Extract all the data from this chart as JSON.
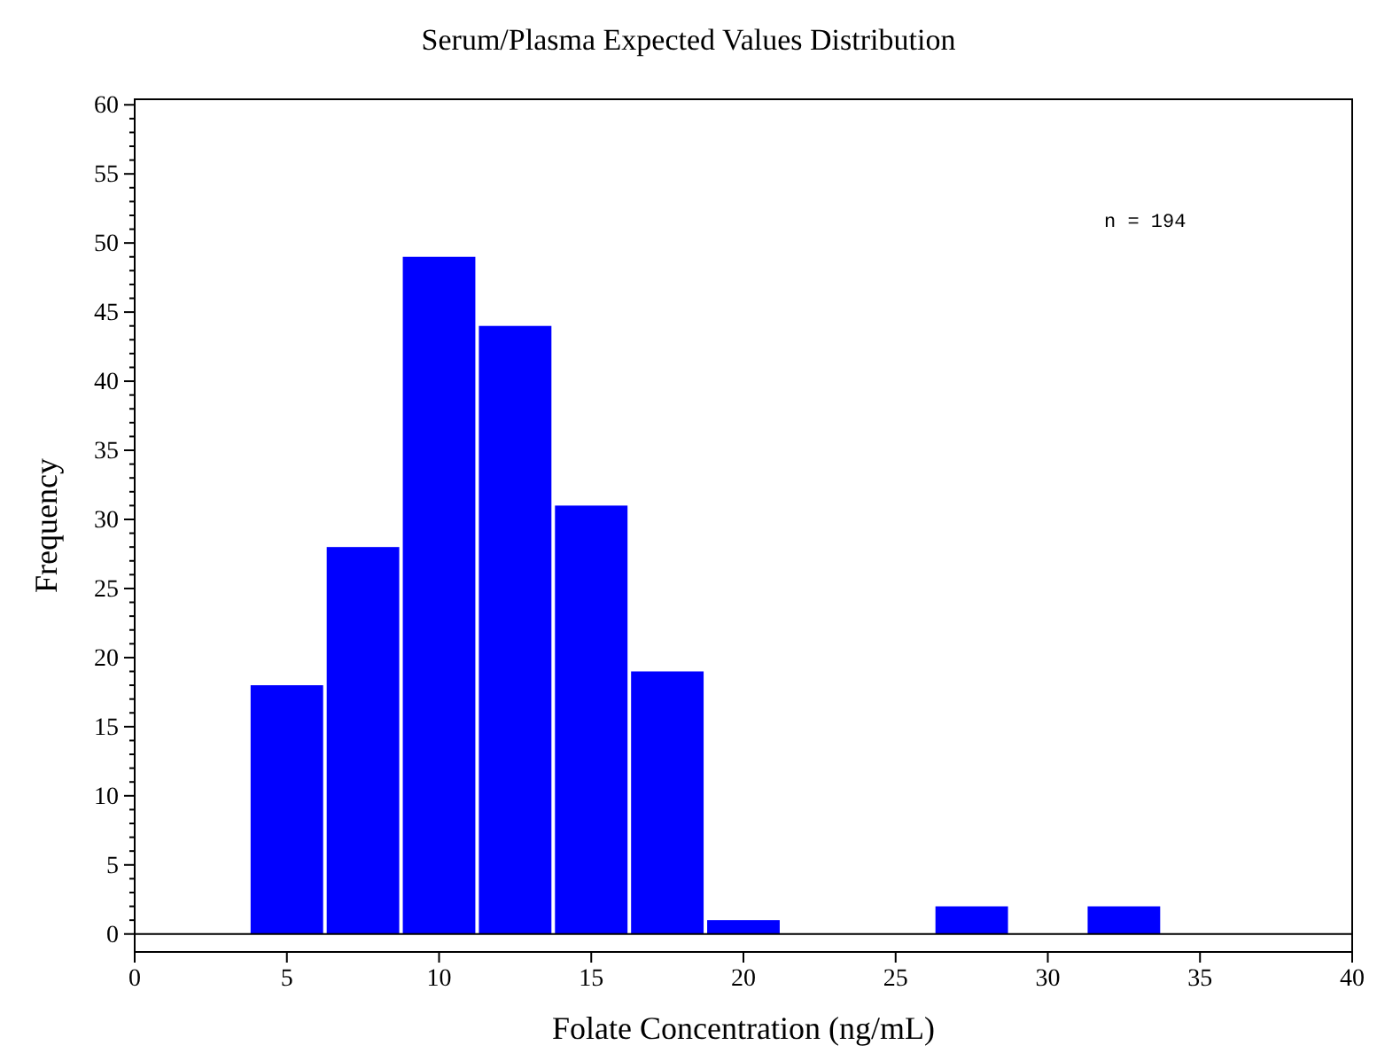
{
  "chart_data": {
    "type": "histogram",
    "title": "Serum/Plasma Expected Values Distribution",
    "xlabel": "Folate Concentration (ng/mL)",
    "ylabel": "Frequency",
    "bins": [
      3.75,
      6.25,
      8.75,
      11.25,
      13.75,
      16.25,
      18.75,
      21.25,
      23.75,
      26.25,
      28.75,
      31.25,
      33.75
    ],
    "values": [
      18,
      28,
      49,
      44,
      31,
      19,
      1,
      0,
      0,
      2,
      0,
      2
    ],
    "color": "#0000ff",
    "xlim": [
      0,
      40
    ],
    "xticks": [
      0,
      5,
      10,
      15,
      20,
      25,
      30,
      35,
      40
    ],
    "ylim": [
      -1.3,
      60.4
    ],
    "yticks": [
      0,
      {
        "value": 1,
        "label": null
      },
      {
        "value": 2,
        "label": null
      },
      {
        "value": 3,
        "label": null
      },
      {
        "value": 4,
        "label": null
      },
      5,
      {
        "value": 6,
        "label": null
      },
      {
        "value": 7,
        "label": null
      },
      {
        "value": 8,
        "label": null
      },
      {
        "value": 9,
        "label": null
      },
      10,
      {
        "value": 11,
        "label": null
      },
      {
        "value": 12,
        "label": null
      },
      {
        "value": 13,
        "label": null
      },
      {
        "value": 14,
        "label": null
      },
      15,
      {
        "value": 16,
        "label": null
      },
      {
        "value": 17,
        "label": null
      },
      {
        "value": 18,
        "label": null
      },
      {
        "value": 19,
        "label": null
      },
      20,
      {
        "value": 21,
        "label": null
      },
      {
        "value": 22,
        "label": null
      },
      {
        "value": 23,
        "label": null
      },
      {
        "value": 24,
        "label": null
      },
      25,
      {
        "value": 26,
        "label": null
      },
      {
        "value": 27,
        "label": null
      },
      {
        "value": 28,
        "label": null
      },
      {
        "value": 29,
        "label": null
      },
      30,
      {
        "value": 31,
        "label": null
      },
      {
        "value": 32,
        "label": null
      },
      {
        "value": 33,
        "label": null
      },
      {
        "value": 34,
        "label": null
      },
      35,
      {
        "value": 36,
        "label": null
      },
      {
        "value": 37,
        "label": null
      },
      {
        "value": 38,
        "label": null
      },
      {
        "value": 39,
        "label": null
      },
      40,
      {
        "value": 41,
        "label": null
      },
      {
        "value": 42,
        "label": null
      },
      {
        "value": 43,
        "label": null
      },
      {
        "value": 44,
        "label": null
      },
      45,
      {
        "value": 46,
        "label": null
      },
      {
        "value": 47,
        "label": null
      },
      {
        "value": 48,
        "label": null
      },
      {
        "value": 49,
        "label": null
      },
      50,
      {
        "value": 51,
        "label": null
      },
      {
        "value": 52,
        "label": null
      },
      {
        "value": 53,
        "label": null
      },
      {
        "value": 54,
        "label": null
      },
      55,
      {
        "value": 56,
        "label": null
      },
      {
        "value": 57,
        "label": null
      },
      {
        "value": 58,
        "label": null
      },
      {
        "value": 59,
        "label": null
      },
      60
    ],
    "ref_lines": [
      {
        "axis": "y",
        "value": 0,
        "color": "#000000"
      }
    ],
    "annotations": [
      "n = 194"
    ],
    "grid": false
  }
}
